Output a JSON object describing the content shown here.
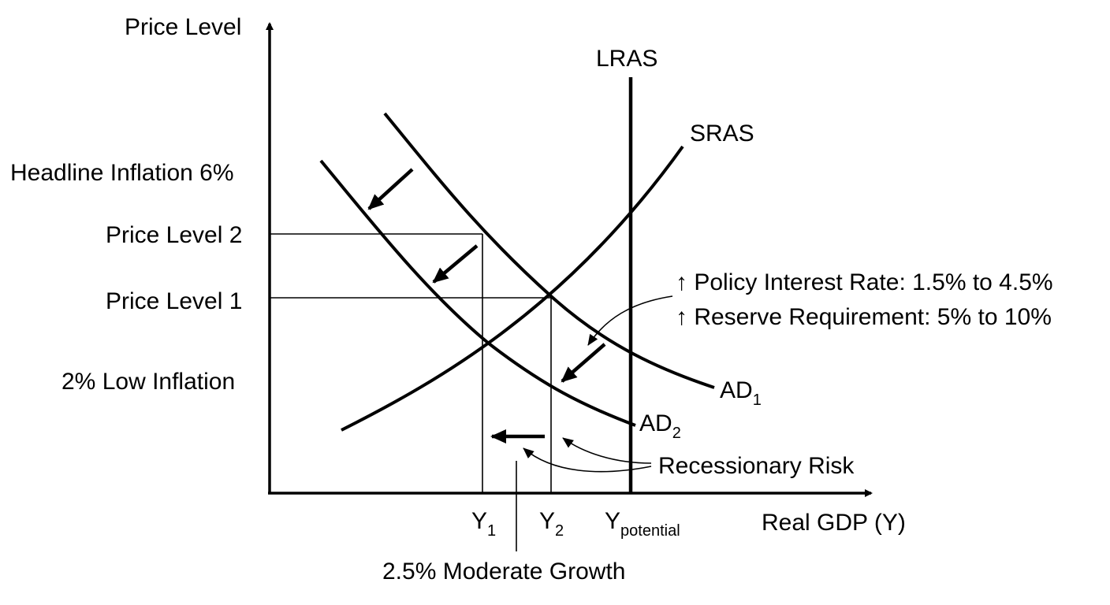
{
  "axes": {
    "y_label": "Price Level",
    "x_label": "Real GDP (Y)"
  },
  "y_ticks": {
    "headline": "Headline Inflation 6%",
    "price_level_2": "Price Level 2",
    "price_level_1": "Price Level 1",
    "low_inflation": "2% Low Inflation"
  },
  "x_ticks": {
    "y1_main": "Y",
    "y1_sub": "1",
    "y2_main": "Y",
    "y2_sub": "2",
    "ypot_main": "Y",
    "ypot_sub": "potential"
  },
  "curves": {
    "lras": "LRAS",
    "sras": "SRAS",
    "ad1_main": "AD",
    "ad1_sub": "1",
    "ad2_main": "AD",
    "ad2_sub": "2"
  },
  "annotations": {
    "policy_rate": "↑ Policy Interest Rate: 1.5% to 4.5%",
    "reserve_req": "↑ Reserve Requirement: 5% to 10%",
    "recessionary_risk": "Recessionary Risk",
    "moderate_growth": "2.5% Moderate Growth"
  }
}
